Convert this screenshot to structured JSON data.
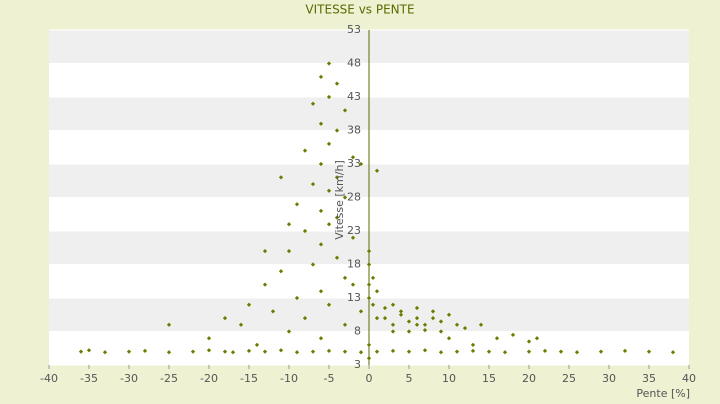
{
  "chart_data": {
    "type": "scatter",
    "title": "VITESSE vs PENTE",
    "x_label": "Pente [%]",
    "y_label": "Vitesse [km/h]",
    "color": "#6b7d00",
    "xlim": [
      -40,
      40
    ],
    "xticks": [
      -40,
      -35,
      -30,
      -25,
      -20,
      -15,
      -10,
      -5,
      0,
      5,
      10,
      15,
      20,
      25,
      30,
      35,
      40
    ],
    "ylim": [
      3,
      53
    ],
    "yticks": [
      3,
      8,
      13,
      18,
      23,
      28,
      33,
      38,
      43,
      48,
      53
    ],
    "series": [
      {
        "name": "Vitesse",
        "x": [
          -36,
          -35,
          -33,
          -30,
          -28,
          -25,
          -22,
          -20,
          -18,
          -17,
          -15,
          -13,
          -11,
          -9,
          -7,
          -5,
          -3,
          -1,
          1,
          3,
          5,
          7,
          9,
          11,
          13,
          15,
          17,
          20,
          22,
          24,
          26,
          29,
          32,
          35,
          38,
          -5,
          -6,
          -4,
          -5,
          -7,
          -3,
          -6,
          -4,
          -5,
          -8,
          -2,
          -6,
          -4,
          -7,
          -5,
          -3,
          -9,
          -6,
          -4,
          -5,
          -8,
          -2,
          -6,
          -10,
          -4,
          -7,
          -11,
          -3,
          -13,
          -6,
          -9,
          -15,
          -5,
          -12,
          -18,
          -8,
          -25,
          -16,
          -10,
          -20,
          -6,
          -14,
          -3,
          -1,
          -2,
          -11,
          -1,
          1,
          -10,
          -13,
          0,
          0,
          0.5,
          0,
          1,
          0,
          0.5,
          0,
          0,
          2,
          3,
          4,
          5,
          6,
          7,
          8,
          9,
          10,
          11,
          3,
          5,
          7,
          9,
          4,
          6,
          8,
          12,
          14,
          16,
          18,
          20,
          21,
          13,
          2,
          1,
          6,
          3,
          10
        ],
        "values": [
          5,
          5.2,
          4.9,
          5,
          5.1,
          4.9,
          5,
          5.2,
          5,
          4.9,
          5.1,
          5,
          5.2,
          4.9,
          5,
          5.1,
          5,
          4.9,
          5,
          5.1,
          5,
          5.2,
          4.9,
          5,
          5.1,
          5,
          4.9,
          5,
          5.1,
          5,
          4.9,
          5,
          5.1,
          5,
          4.9,
          48,
          46,
          45,
          43,
          42,
          41,
          39,
          38,
          36,
          35,
          34,
          33,
          31,
          30,
          29,
          28,
          27,
          26,
          25,
          24,
          23,
          22,
          21,
          20,
          19,
          18,
          17,
          16,
          15,
          14,
          13,
          12,
          12,
          11,
          10,
          10,
          9,
          9,
          8,
          7,
          7,
          6,
          9,
          11,
          15,
          31,
          33,
          32,
          24,
          20,
          20,
          18,
          16,
          15,
          14,
          13,
          12,
          6,
          4,
          10,
          9,
          10.5,
          9.5,
          10,
          9,
          10,
          9.5,
          10.5,
          9,
          8,
          8,
          8.2,
          8,
          11,
          11.5,
          11,
          8.5,
          9,
          7,
          7.5,
          6.5,
          7,
          6,
          11.5,
          10,
          9,
          12,
          7
        ]
      }
    ]
  }
}
